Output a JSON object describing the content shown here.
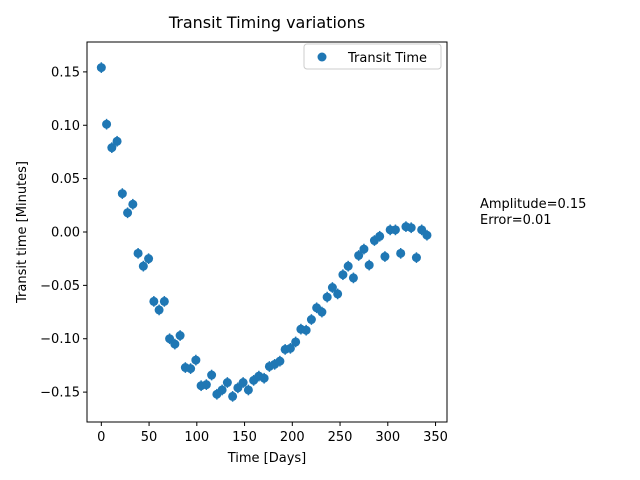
{
  "chart_data": {
    "type": "scatter",
    "title": "Transit Timing variations",
    "xlabel": "Time [Days]",
    "ylabel": "Transit time [Minutes]",
    "xlim": [
      -15,
      362
    ],
    "ylim": [
      -0.178,
      0.178
    ],
    "xticks": [
      0,
      50,
      100,
      150,
      200,
      250,
      300,
      350
    ],
    "yticks": [
      -0.15,
      -0.1,
      -0.05,
      0.0,
      0.05,
      0.1,
      0.15
    ],
    "ytick_labels": [
      "−0.15",
      "−0.10",
      "−0.05",
      "0.00",
      "0.05",
      "0.10",
      "0.15"
    ],
    "grid": false,
    "legend": {
      "position": "top-right",
      "entries": [
        "Transit Time"
      ]
    },
    "annotations": [
      "Amplitude=0.15",
      "Error=0.01"
    ],
    "series": [
      {
        "name": "Transit Time",
        "color": "#1f77b4",
        "error": 0.005,
        "x": [
          0,
          5.5,
          11,
          16.5,
          22,
          27.5,
          33,
          38.5,
          44,
          49.5,
          55,
          60.5,
          66,
          71.5,
          77,
          82.5,
          88,
          93.5,
          99,
          104.5,
          110,
          115.5,
          121,
          126.5,
          132,
          137.5,
          143,
          148.5,
          154,
          159.5,
          165,
          170.5,
          176,
          181.5,
          187,
          192.5,
          198,
          203.5,
          209,
          214.5,
          220,
          225.5,
          231,
          236.5,
          242,
          247.5,
          253,
          258.5,
          264,
          269.5,
          275,
          280.5,
          286,
          291.5,
          297,
          302.5,
          308,
          313.5,
          319,
          324.5,
          330,
          335.5,
          341
        ],
        "y": [
          0.154,
          0.101,
          0.079,
          0.085,
          0.036,
          0.018,
          0.026,
          -0.02,
          -0.032,
          -0.025,
          -0.065,
          -0.073,
          -0.065,
          -0.1,
          -0.105,
          -0.097,
          -0.127,
          -0.128,
          -0.12,
          -0.144,
          -0.143,
          -0.134,
          -0.152,
          -0.148,
          -0.141,
          -0.154,
          -0.146,
          -0.141,
          -0.148,
          -0.139,
          -0.135,
          -0.137,
          -0.126,
          -0.124,
          -0.121,
          -0.11,
          -0.109,
          -0.103,
          -0.091,
          -0.092,
          -0.082,
          -0.071,
          -0.075,
          -0.061,
          -0.052,
          -0.058,
          -0.04,
          -0.032,
          -0.043,
          -0.022,
          -0.016,
          -0.031,
          -0.008,
          -0.004,
          -0.023,
          0.002,
          0.002,
          -0.02,
          0.005,
          0.004,
          -0.024,
          0.002,
          -0.003
        ]
      }
    ]
  }
}
